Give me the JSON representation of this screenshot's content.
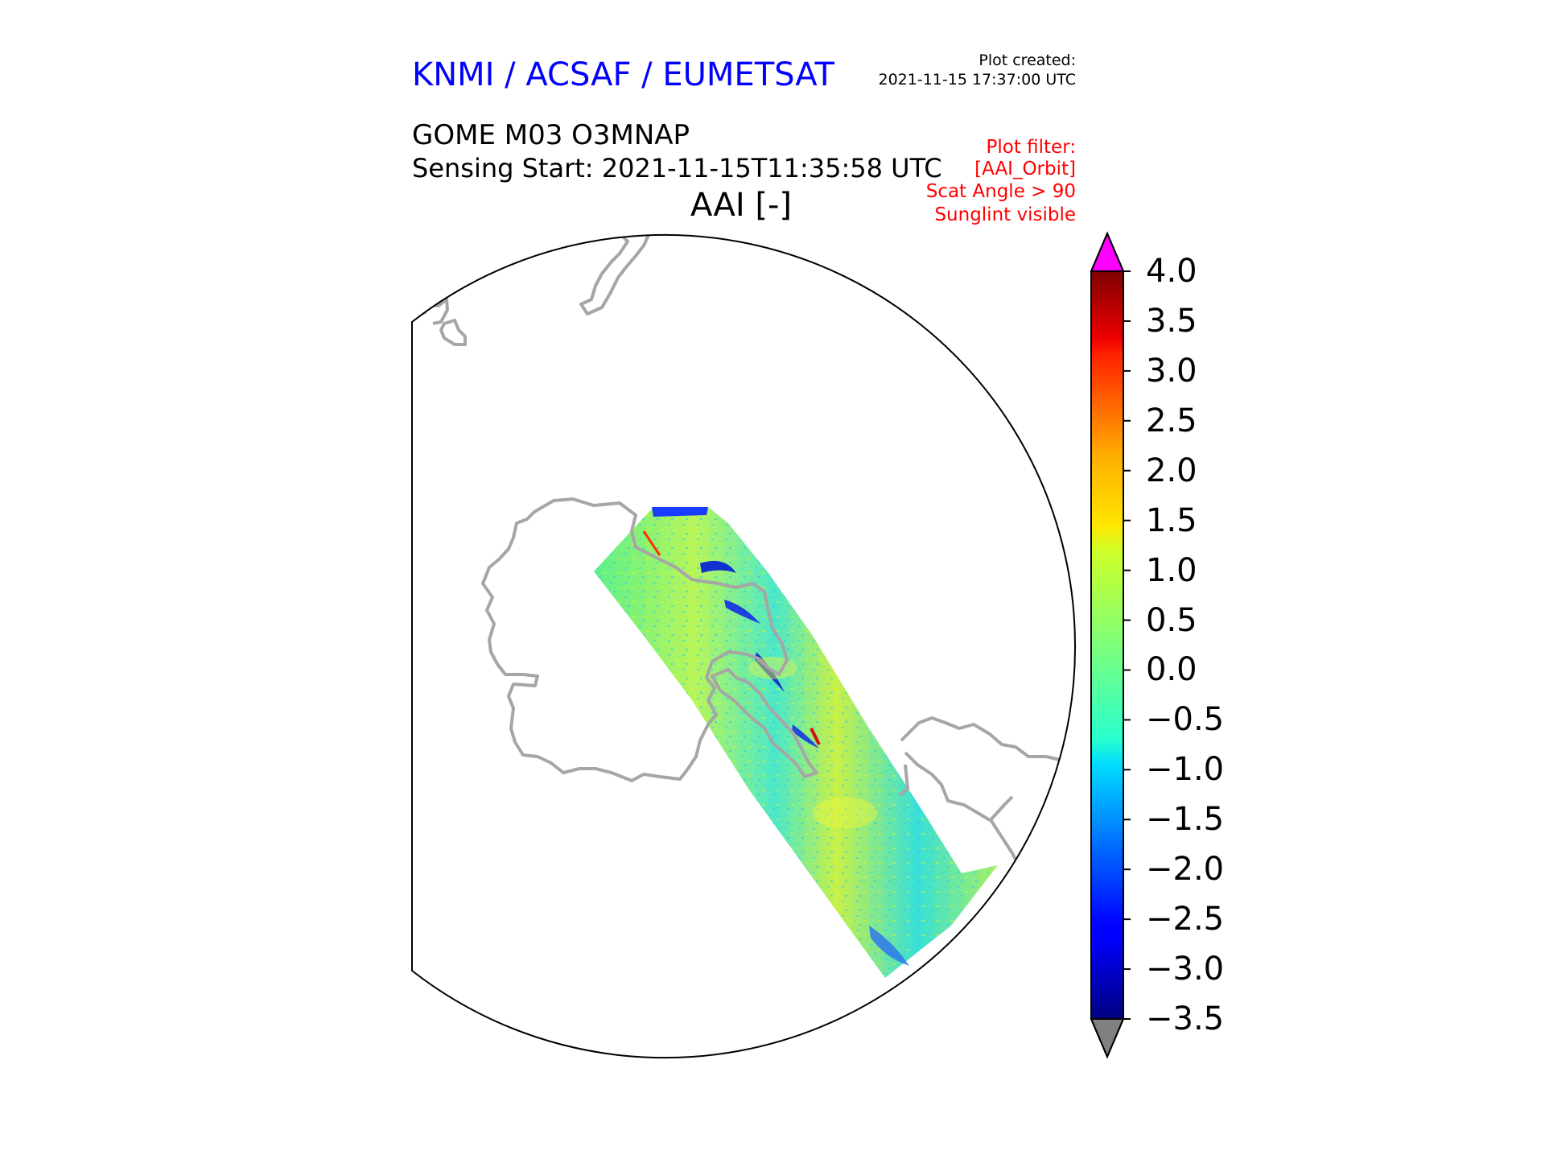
{
  "header": {
    "brand": "KNMI / ACSAF / EUMETSAT",
    "plot_created_label": "Plot created:",
    "plot_created_time": "2021-11-15 17:37:00 UTC"
  },
  "product": {
    "title": "GOME M03 O3MNAP",
    "sensing_start": "Sensing Start: 2021-11-15T11:35:58 UTC",
    "variable": "AAI [-]"
  },
  "filter": {
    "label": "Plot filter:",
    "items": [
      "[AAI_Orbit]",
      "Scat Angle > 90",
      "Sunglint visible"
    ]
  },
  "colors": {
    "coastline": "#a6a6a6",
    "over_color": "#ff00ff",
    "under_color": "#808080",
    "brand": "#0000ff",
    "filter": "#ff0000"
  },
  "colorbar": {
    "min": -3.5,
    "max": 4.0,
    "ticks": [
      "4.0",
      "3.5",
      "3.0",
      "2.5",
      "2.0",
      "1.5",
      "1.0",
      "0.5",
      "0.0",
      "−0.5",
      "−1.0",
      "−1.5",
      "−2.0",
      "−2.5",
      "−3.0",
      "−3.5"
    ],
    "tick_values": [
      4.0,
      3.5,
      3.0,
      2.5,
      2.0,
      1.5,
      1.0,
      0.5,
      0.0,
      -0.5,
      -1.0,
      -1.5,
      -2.0,
      -2.5,
      -3.0,
      -3.5
    ],
    "cmap": "jet",
    "extend": "both"
  }
}
